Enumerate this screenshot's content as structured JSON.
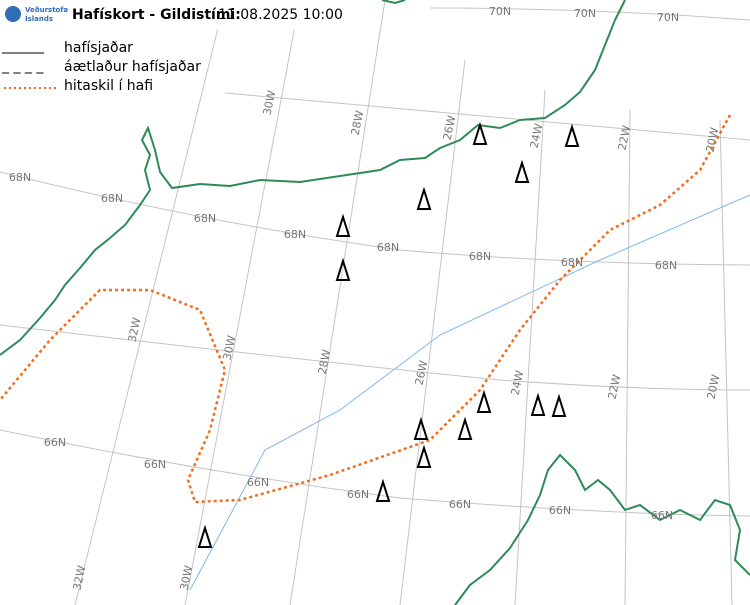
{
  "header": {
    "title": "Hafískort - Gildistími:",
    "valid_time": "11.08.2025 10:00",
    "logo": [
      "Veðurstofa",
      "Íslands"
    ]
  },
  "legend": [
    {
      "symbol": "______",
      "label": "hafísjaðar"
    },
    {
      "symbol": "_ _ _ _",
      "label": "áætlaður hafísjaðar"
    },
    {
      "label": "hitaskil í hafi"
    }
  ],
  "grid_labels": [
    "70N",
    "70N",
    "70N",
    "68N",
    "68N",
    "68N",
    "68N",
    "68N",
    "68N",
    "68N",
    "68N",
    "66N",
    "66N",
    "66N",
    "66N",
    "66N",
    "66N",
    "66N",
    "30W",
    "28W",
    "26W",
    "24W",
    "22W",
    "20W",
    "32W",
    "30W",
    "28W",
    "26W",
    "24W",
    "22W",
    "20W",
    "32W",
    "30W"
  ]
}
